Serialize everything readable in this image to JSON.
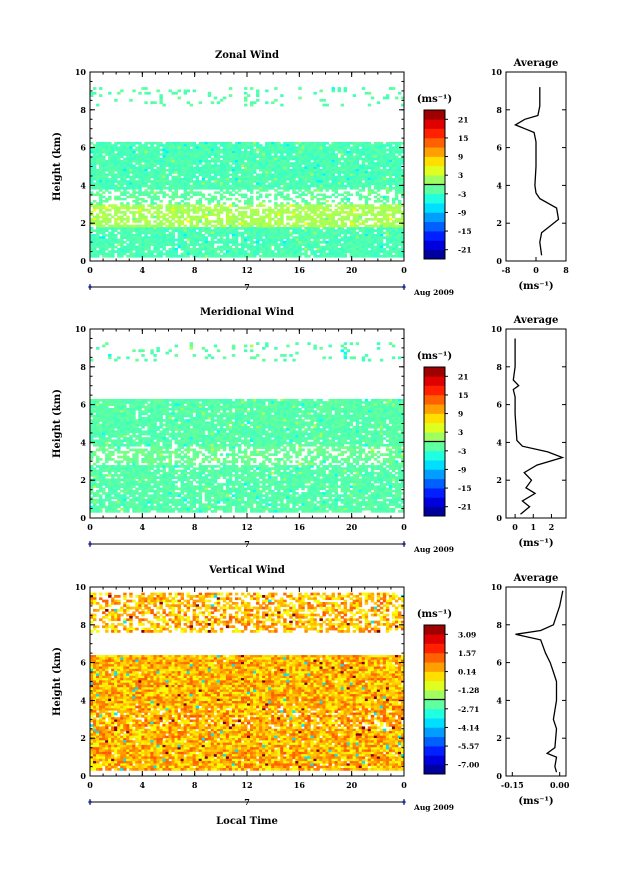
{
  "chart_data": [
    {
      "type": "heatmap",
      "title": "Zonal Wind",
      "ylabel": "Height (km)",
      "xlim": [
        0,
        24
      ],
      "ylim": [
        0,
        10
      ],
      "xticks": [
        "0",
        "4",
        "8",
        "12",
        "16",
        "20",
        "0"
      ],
      "yticks": [
        "0",
        "2",
        "4",
        "6",
        "8",
        "10"
      ],
      "date_marker": "7",
      "date_label": "Aug 2009",
      "colorbar": {
        "unit": "(ms⁻¹)",
        "ticks": [
          "21",
          "15",
          "9",
          "3",
          "-3",
          "-9",
          "-15",
          "-21"
        ],
        "range": [
          -24,
          24
        ]
      },
      "bands": [
        {
          "y0": 0.2,
          "y1": 1.8,
          "value": -2.5,
          "coverage": 0.9
        },
        {
          "y0": 1.8,
          "y1": 3.0,
          "value": 2.0,
          "coverage": 0.7
        },
        {
          "y0": 3.0,
          "y1": 3.8,
          "value": -1.5,
          "coverage": 0.45
        },
        {
          "y0": 3.8,
          "y1": 6.3,
          "value": -2.5,
          "coverage": 0.92
        },
        {
          "y0": 8.2,
          "y1": 9.2,
          "value": -2.0,
          "coverage": 0.12
        }
      ],
      "average": {
        "title": "Average",
        "xlabel": "(ms⁻¹)",
        "xlim": [
          -8,
          8
        ],
        "xticks": [
          "-8",
          "0",
          "8"
        ],
        "profile": [
          [
            0.3,
            1.5
          ],
          [
            1.0,
            1.0
          ],
          [
            1.5,
            1.5
          ],
          [
            2.2,
            6.0
          ],
          [
            2.8,
            5.5
          ],
          [
            3.3,
            1.0
          ],
          [
            3.6,
            0.0
          ],
          [
            4.0,
            -0.3
          ],
          [
            5.0,
            0.0
          ],
          [
            6.3,
            0.0
          ],
          [
            6.8,
            -0.5
          ],
          [
            7.0,
            -3.0
          ],
          [
            7.2,
            -5.5
          ],
          [
            7.5,
            -3.0
          ],
          [
            7.7,
            0.5
          ],
          [
            8.2,
            1.0
          ],
          [
            9.2,
            1.0
          ]
        ]
      }
    },
    {
      "type": "heatmap",
      "title": "Meridional Wind",
      "ylabel": "Height (km)",
      "xlim": [
        0,
        24
      ],
      "ylim": [
        0,
        10
      ],
      "xticks": [
        "0",
        "4",
        "8",
        "12",
        "16",
        "20",
        "0"
      ],
      "yticks": [
        "0",
        "2",
        "4",
        "6",
        "8",
        "10"
      ],
      "date_marker": "7",
      "date_label": "Aug 2009",
      "colorbar": {
        "unit": "(ms⁻¹)",
        "ticks": [
          "21",
          "15",
          "9",
          "3",
          "-3",
          "-9",
          "-15",
          "-21"
        ],
        "range": [
          -24,
          24
        ]
      },
      "bands": [
        {
          "y0": 0.3,
          "y1": 2.8,
          "value": -2.0,
          "coverage": 0.85
        },
        {
          "y0": 2.8,
          "y1": 3.8,
          "value": -1.0,
          "coverage": 0.55
        },
        {
          "y0": 3.8,
          "y1": 6.3,
          "value": -2.0,
          "coverage": 0.9
        },
        {
          "y0": 8.3,
          "y1": 9.3,
          "value": -2.0,
          "coverage": 0.1
        }
      ],
      "average": {
        "title": "Average",
        "xlabel": "(ms⁻¹)",
        "xlim": [
          -0.5,
          2.8
        ],
        "xticks": [
          "0",
          "1",
          "2"
        ],
        "profile": [
          [
            0.2,
            0.3
          ],
          [
            0.6,
            0.8
          ],
          [
            0.9,
            0.4
          ],
          [
            1.3,
            1.1
          ],
          [
            1.6,
            0.6
          ],
          [
            2.0,
            0.9
          ],
          [
            2.4,
            0.5
          ],
          [
            2.8,
            1.2
          ],
          [
            3.2,
            2.6
          ],
          [
            3.5,
            1.8
          ],
          [
            3.8,
            0.4
          ],
          [
            4.1,
            0.1
          ],
          [
            5.5,
            0.0
          ],
          [
            6.4,
            0.0
          ],
          [
            6.8,
            -0.1
          ],
          [
            7.0,
            0.2
          ],
          [
            7.3,
            -0.1
          ],
          [
            8.0,
            0.0
          ],
          [
            9.5,
            0.0
          ]
        ]
      }
    },
    {
      "type": "heatmap",
      "title": "Vertical Wind",
      "ylabel": "Height (km)",
      "xlabel": "Local Time",
      "xlim": [
        0,
        24
      ],
      "ylim": [
        0,
        10
      ],
      "xticks": [
        "0",
        "4",
        "8",
        "12",
        "16",
        "20",
        "0"
      ],
      "yticks": [
        "0",
        "2",
        "4",
        "6",
        "8",
        "10"
      ],
      "date_marker": "7",
      "date_label": "Aug 2009",
      "colorbar": {
        "unit": "(ms⁻¹)",
        "ticks": [
          "3.09",
          "1.57",
          "0.14",
          "-1.28",
          "-2.71",
          "-4.14",
          "-5.57",
          "-7.00"
        ],
        "range": [
          -7.71,
          3.8
        ]
      },
      "bands": [
        {
          "y0": 0.3,
          "y1": 2.5,
          "value": 0.3,
          "coverage": 0.96
        },
        {
          "y0": 2.5,
          "y1": 3.6,
          "value": 0.4,
          "coverage": 0.82
        },
        {
          "y0": 3.6,
          "y1": 6.4,
          "value": 0.3,
          "coverage": 0.99
        },
        {
          "y0": 7.6,
          "y1": 9.7,
          "value": 0.3,
          "coverage": 0.55
        }
      ],
      "average": {
        "title": "Average",
        "xlabel": "(ms⁻¹)",
        "xlim": [
          -0.17,
          0.02
        ],
        "xticks": [
          "-0.15",
          "0.00"
        ],
        "profile": [
          [
            0.2,
            -0.01
          ],
          [
            0.5,
            -0.015
          ],
          [
            1.0,
            -0.01
          ],
          [
            1.2,
            -0.04
          ],
          [
            1.5,
            -0.015
          ],
          [
            2.5,
            -0.01
          ],
          [
            3.0,
            -0.02
          ],
          [
            4.0,
            -0.01
          ],
          [
            5.0,
            -0.01
          ],
          [
            5.5,
            -0.02
          ],
          [
            6.0,
            -0.03
          ],
          [
            6.5,
            -0.045
          ],
          [
            7.2,
            -0.06
          ],
          [
            7.5,
            -0.14
          ],
          [
            7.7,
            -0.06
          ],
          [
            8.0,
            -0.02
          ],
          [
            9.0,
            0.0
          ],
          [
            9.8,
            0.01
          ]
        ]
      }
    }
  ]
}
